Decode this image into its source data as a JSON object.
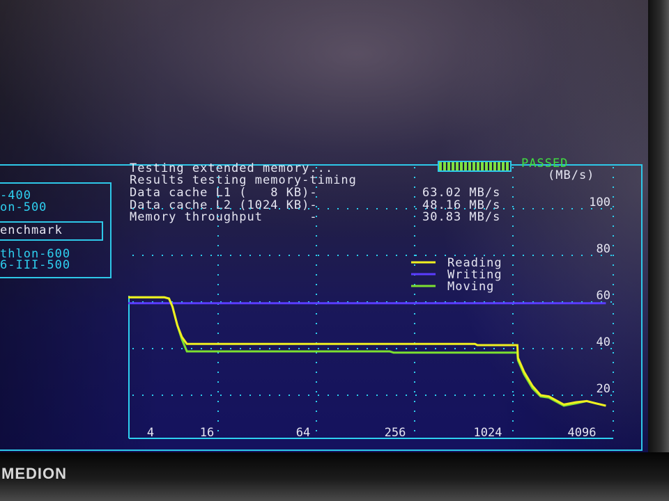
{
  "header": {
    "status_line": "Testing extended memory...",
    "status_badge": "PASSED",
    "results_title": "Results testing memory-timing",
    "unit": "(MB/s)",
    "rows": [
      {
        "label": "Data cache L1 (   8 KB)-",
        "value": "63.02 MB/s"
      },
      {
        "label": "Data cache L2 (1024 KB)-",
        "value": "48.16 MB/s"
      },
      {
        "label": "Memory throughput      -",
        "value": "30.83 MB/s"
      }
    ]
  },
  "left_panel": {
    "items": [
      "-400",
      "on-500",
      "enchmark",
      "thlon-600",
      "6-III-500"
    ],
    "selected": "enchmark"
  },
  "brand": "MEDION",
  "colors": {
    "reading": "#f0f020",
    "writing": "#5a3cff",
    "moving": "#7ce030",
    "grid": "#2ed0f0",
    "passed": "#40e040"
  },
  "chart_data": {
    "type": "line",
    "title": "",
    "xlabel": "",
    "ylabel": "(MB/s)",
    "x_scale": "log",
    "x_ticks": [
      4,
      16,
      64,
      256,
      1024,
      4096
    ],
    "x_tick_labels": [
      "4",
      "16",
      "64",
      "256",
      "1024",
      "4096"
    ],
    "y_ticks": [
      20,
      40,
      60,
      80,
      100
    ],
    "y_tick_labels": [
      "20",
      "40",
      "60",
      "80",
      "100"
    ],
    "ylim": [
      0,
      100
    ],
    "grid": true,
    "legend_position": "top-right",
    "series": [
      {
        "name": "Reading",
        "x": [
          4.5,
          7.5,
          8,
          8.4,
          9,
          9.6,
          10.3,
          600,
          620,
          1090,
          1100,
          1200,
          1350,
          1515,
          1700,
          2100,
          2500,
          2900,
          3300,
          3800
        ],
        "y": [
          62,
          62,
          61.5,
          58,
          50,
          45,
          42,
          42,
          41.5,
          41.5,
          36,
          30,
          24,
          20,
          19.5,
          16,
          17,
          17.5,
          16.5,
          15.5
        ]
      },
      {
        "name": "Writing",
        "x": [
          4.5,
          3800
        ],
        "y": [
          59.5,
          59.5
        ]
      },
      {
        "name": "Moving",
        "x": [
          4.5,
          7.5,
          8,
          8.4,
          9,
          9.6,
          10.3,
          180,
          190,
          1090,
          1100,
          1200,
          1350,
          1515,
          1700,
          2100,
          2500,
          2900,
          3300,
          3800
        ],
        "y": [
          62,
          62,
          61.5,
          58,
          50,
          44,
          38.8,
          38.8,
          38.3,
          38.3,
          35,
          29,
          23,
          19.5,
          19,
          15.5,
          16.5,
          17.5,
          16.5,
          15.5
        ]
      }
    ]
  }
}
